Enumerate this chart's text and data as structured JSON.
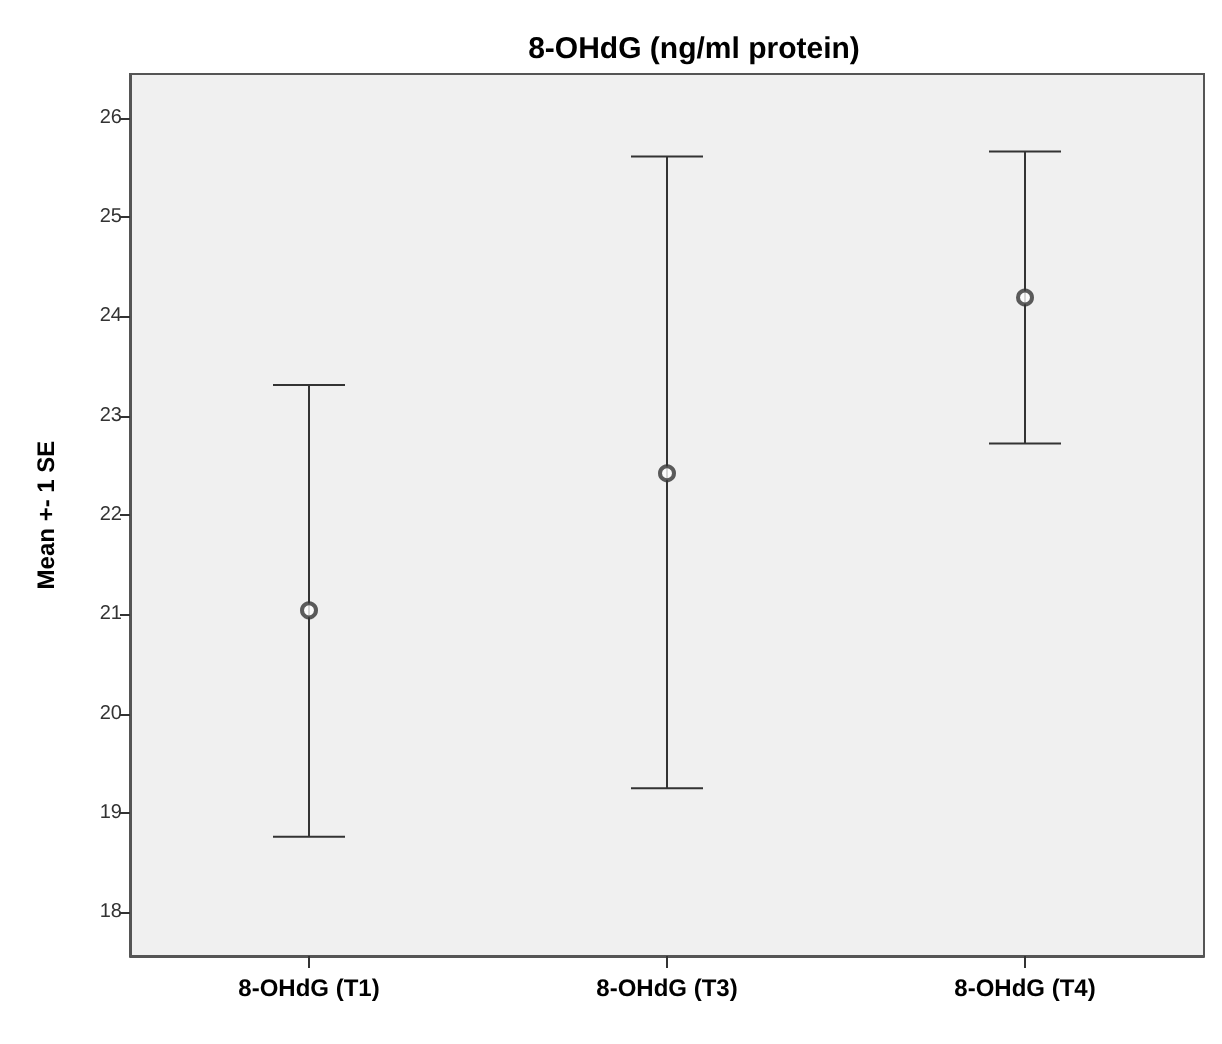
{
  "chart_data": {
    "type": "scatter",
    "title": "8-OHdG (ng/ml protein)",
    "ylabel": "Mean +- 1 SE",
    "categories": [
      "8-OHdG (T1)",
      "8-OHdG (T3)",
      "8-OHdG (T4)"
    ],
    "values": [
      21.04,
      22.42,
      24.19
    ],
    "errors": [
      [
        18.76,
        23.31
      ],
      [
        19.25,
        25.61
      ],
      [
        22.72,
        25.66
      ]
    ],
    "color": "#333333",
    "marker": "circle",
    "ylim": [
      17.56,
      26.44
    ],
    "yticks": [
      18,
      19,
      20,
      21,
      22,
      23,
      24,
      25,
      26
    ],
    "grid": false
  }
}
